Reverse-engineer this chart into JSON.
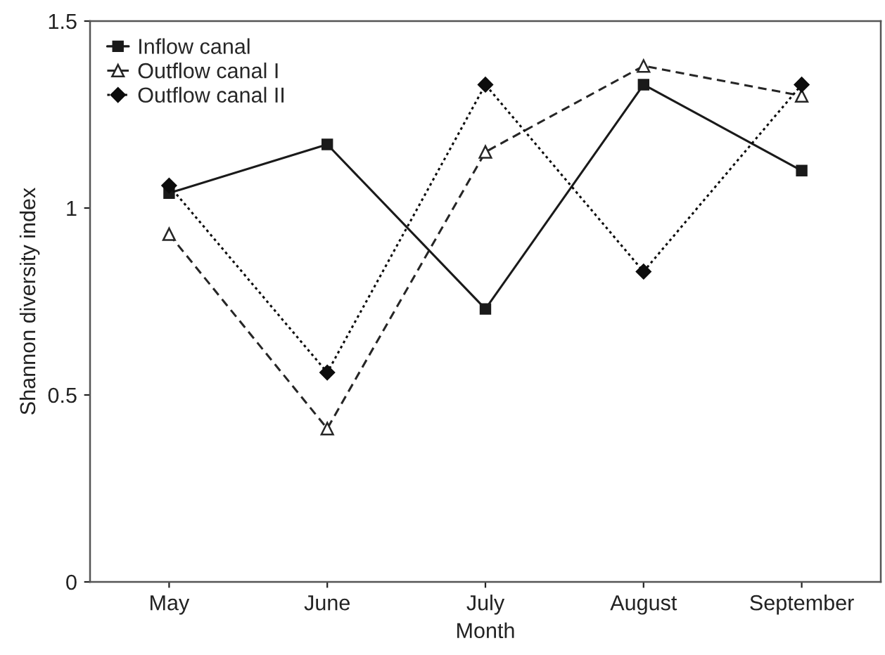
{
  "chart_data": {
    "type": "line",
    "xlabel": "Month",
    "ylabel": "Shannon diversity index",
    "categories": [
      "May",
      "June",
      "July",
      "August",
      "September"
    ],
    "series": [
      {
        "name": "Inflow canal",
        "color": "#1a1a1a",
        "marker": "square",
        "line_style": "solid",
        "values": [
          1.04,
          1.17,
          0.73,
          1.33,
          1.1
        ]
      },
      {
        "name": "Outflow canal I",
        "color": "#262626",
        "marker": "triangle",
        "line_style": "dashed",
        "values": [
          0.93,
          0.41,
          1.15,
          1.38,
          1.3
        ]
      },
      {
        "name": "Outflow canal II",
        "color": "#0d0d0d",
        "marker": "diamond",
        "line_style": "dotted",
        "values": [
          1.06,
          0.56,
          1.33,
          0.83,
          1.33
        ]
      }
    ],
    "ylim": [
      0,
      1.5
    ],
    "yticks": [
      0,
      0.5,
      1,
      1.5
    ],
    "grid": false,
    "legend": "top left"
  }
}
